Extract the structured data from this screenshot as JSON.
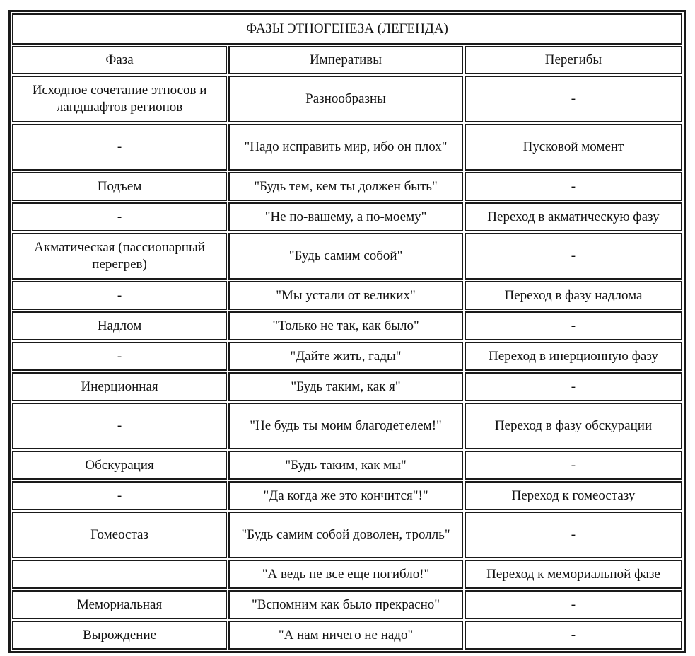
{
  "title": "ФАЗЫ ЭТНОГЕНЕЗА (ЛЕГЕНДА)",
  "headers": [
    "Фаза",
    "Императивы",
    "Перегибы"
  ],
  "rows": [
    {
      "phase": "Исходное сочетание этносов и ландшафтов регионов",
      "imperative": "Разнообразны",
      "inflection": "-",
      "tall": true
    },
    {
      "phase": "-",
      "imperative": "\"Надо исправить мир, ибо он плох\"",
      "inflection": "Пусковой момент",
      "tall": true
    },
    {
      "phase": "Подъем",
      "imperative": "\"Будь тем, кем ты должен быть\"",
      "inflection": "-"
    },
    {
      "phase": "-",
      "imperative": "\"Не по-вашему, а по-моему\"",
      "inflection": "Переход в акматическую фазу"
    },
    {
      "phase": "Акматическая (пассионарный перегрев)",
      "imperative": "\"Будь самим собой\"",
      "inflection": "-",
      "tall": true
    },
    {
      "phase": "-",
      "imperative": "\"Мы устали от великих\"",
      "inflection": "Переход в фазу надлома"
    },
    {
      "phase": "Надлом",
      "imperative": "\"Только не так, как было\"",
      "inflection": "-"
    },
    {
      "phase": "-",
      "imperative": "\"Дайте жить, гады\"",
      "inflection": "Переход в инерционную фазу"
    },
    {
      "phase": "Инерционная",
      "imperative": "\"Будь таким, как я\"",
      "inflection": "-"
    },
    {
      "phase": "-",
      "imperative": "\"Не будь ты моим благодетелем!\"",
      "inflection": "Переход в фазу обскурации",
      "tall": true
    },
    {
      "phase": "Обскурация",
      "imperative": "\"Будь таким, как мы\"",
      "inflection": "-"
    },
    {
      "phase": "-",
      "imperative": "\"Да когда же это кончится\"!\"",
      "inflection": "Переход к гомеостазу"
    },
    {
      "phase": "Гомеостаз",
      "imperative": "\"Будь самим собой доволен, тролль\"",
      "inflection": "-",
      "tall": true
    },
    {
      "phase": "",
      "imperative": "\"А ведь не все еще погибло!\"",
      "inflection": "Переход к мемориальной фазе"
    },
    {
      "phase": "Мемориальная",
      "imperative": "\"Вспомним как было прекрасно\"",
      "inflection": "-"
    },
    {
      "phase": "Вырождение",
      "imperative": "\"А нам ничего не надо\"",
      "inflection": "-"
    }
  ]
}
